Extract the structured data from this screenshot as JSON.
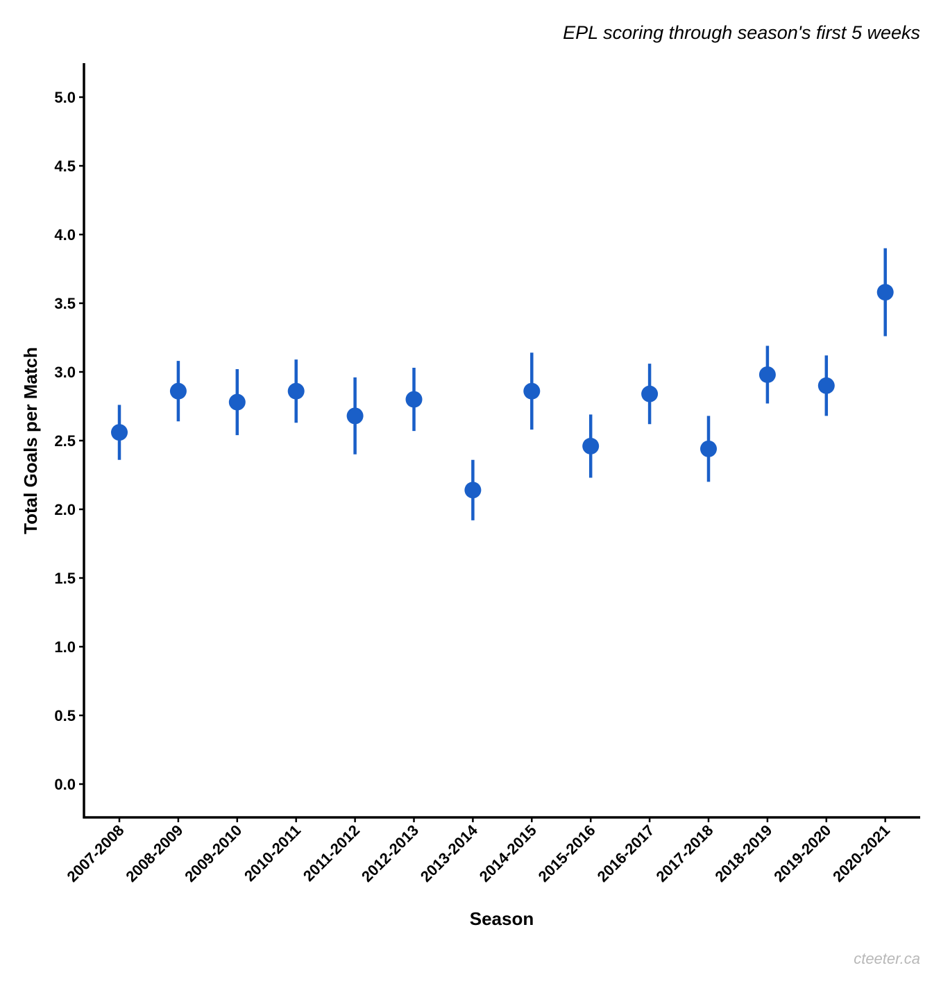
{
  "title": "EPL scoring through season's first 5 weeks",
  "credit": "cteeter.ca",
  "colors": {
    "point": "#1a5fc8",
    "axis": "#000000",
    "credit": "#b8b8b8"
  },
  "chart_data": {
    "type": "scatter",
    "title": "EPL scoring through season's first 5 weeks",
    "xlabel": "Season",
    "ylabel": "Total Goals per Match",
    "ylim": [
      -0.25,
      5.25
    ],
    "yticks": [
      "0.0",
      "0.5",
      "1.0",
      "1.5",
      "2.0",
      "2.5",
      "3.0",
      "3.5",
      "4.0",
      "4.5",
      "5.0"
    ],
    "grid": false,
    "legend": "none",
    "categories": [
      "2007-2008",
      "2008-2009",
      "2009-2010",
      "2010-2011",
      "2011-2012",
      "2012-2013",
      "2013-2014",
      "2014-2015",
      "2015-2016",
      "2016-2017",
      "2017-2018",
      "2018-2019",
      "2019-2020",
      "2020-2021"
    ],
    "values": [
      2.56,
      2.86,
      2.78,
      2.86,
      2.68,
      2.8,
      2.14,
      2.86,
      2.46,
      2.84,
      2.44,
      2.98,
      2.9,
      3.58
    ],
    "lower": [
      2.36,
      2.64,
      2.54,
      2.63,
      2.4,
      2.57,
      1.92,
      2.58,
      2.23,
      2.62,
      2.2,
      2.77,
      2.68,
      3.26
    ],
    "upper": [
      2.76,
      3.08,
      3.02,
      3.09,
      2.96,
      3.03,
      2.36,
      3.14,
      2.69,
      3.06,
      2.68,
      3.19,
      3.12,
      3.9
    ]
  }
}
